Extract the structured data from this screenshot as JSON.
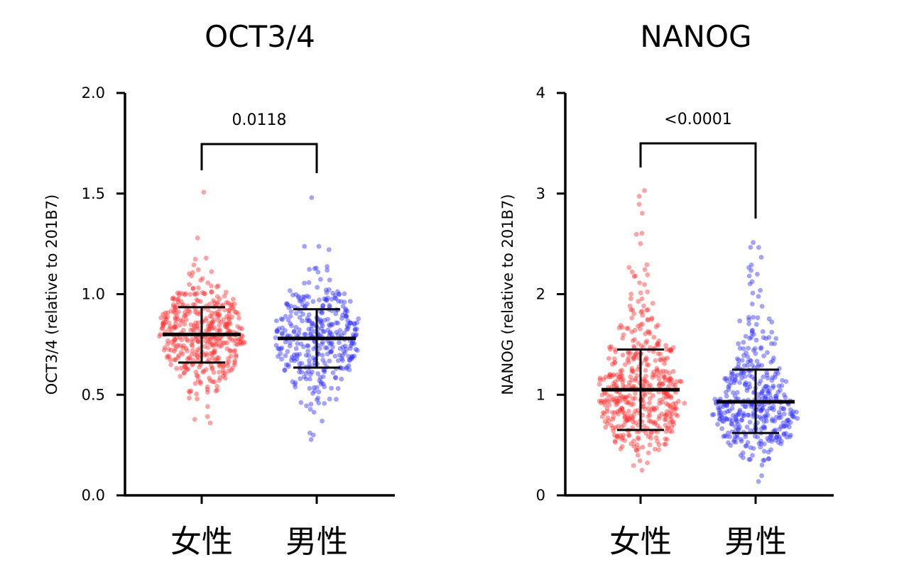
{
  "chart_data": [
    {
      "type": "scatter",
      "subtype": "beeswarm-dot-plot",
      "title": "OCT3/4",
      "xlabel": "",
      "ylabel": "OCT3/4 (relative to 201B7)",
      "ylim": [
        0,
        2
      ],
      "yticks": [
        "0.0",
        "0.5",
        "1.0",
        "1.5",
        "2.0"
      ],
      "ytick_values": [
        0,
        0.5,
        1.0,
        1.5,
        2.0
      ],
      "categories": [
        "女性",
        "男性"
      ],
      "series": [
        {
          "name": "女性",
          "color": "#ff3030",
          "mean": 0.8,
          "sd_low": 0.66,
          "sd_high": 0.935,
          "min": 0.36,
          "max": 1.51,
          "n": 420,
          "outliers": [
            1.51,
            1.28,
            1.18,
            0.36,
            0.39
          ]
        },
        {
          "name": "男性",
          "color": "#3030ff",
          "mean": 0.78,
          "sd_low": 0.635,
          "sd_high": 0.925,
          "min": 0.28,
          "max": 1.48,
          "n": 360,
          "outliers": [
            1.48,
            1.24,
            1.22,
            0.28,
            0.31
          ]
        }
      ],
      "comparison": {
        "between": [
          "女性",
          "男性"
        ],
        "p_value": "0.0118"
      }
    },
    {
      "type": "scatter",
      "subtype": "beeswarm-dot-plot",
      "title": "NANOG",
      "xlabel": "",
      "ylabel": "NANOG (relative to 201B7)",
      "ylim": [
        0,
        4
      ],
      "yticks": [
        "0",
        "1",
        "2",
        "3",
        "4"
      ],
      "ytick_values": [
        0,
        1,
        2,
        3,
        4
      ],
      "categories": [
        "女性",
        "男性"
      ],
      "series": [
        {
          "name": "女性",
          "color": "#ff3030",
          "mean": 1.05,
          "sd_low": 0.65,
          "sd_high": 1.45,
          "min": 0.25,
          "max": 3.03,
          "n": 460,
          "outliers": [
            3.03,
            2.97,
            2.9,
            2.8,
            2.6,
            2.5,
            0.25,
            0.3
          ]
        },
        {
          "name": "男性",
          "color": "#3030ff",
          "mean": 0.93,
          "sd_low": 0.62,
          "sd_high": 1.25,
          "min": 0.14,
          "max": 2.51,
          "n": 400,
          "outliers": [
            2.51,
            2.23,
            2.18,
            2.1,
            0.14,
            0.2
          ]
        }
      ],
      "comparison": {
        "between": [
          "女性",
          "男性"
        ],
        "p_value": "<0.0001"
      }
    }
  ]
}
